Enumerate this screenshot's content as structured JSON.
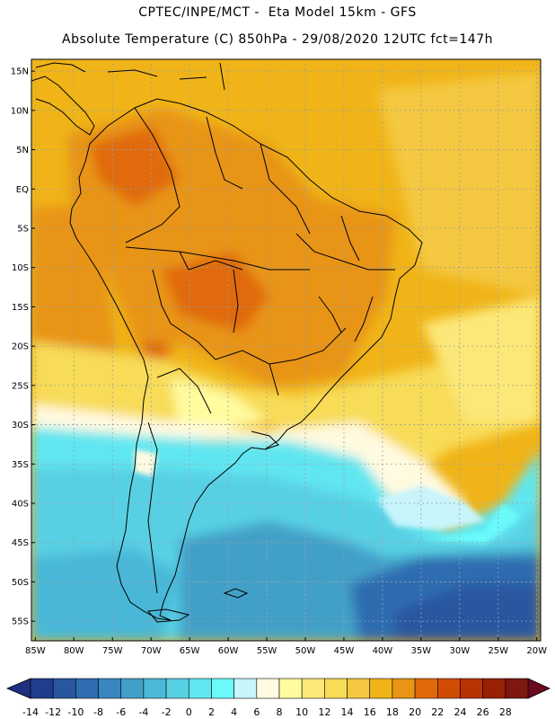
{
  "header": {
    "line1": "CPTEC/INPE/MCT -  Eta Model 15km - GFS",
    "line2": "Absolute Temperature (C) 850hPa - 29/08/2020 12UTC fct=147h"
  },
  "map": {
    "lat_labels": [
      "15N",
      "10N",
      "5N",
      "EQ",
      "5S",
      "10S",
      "15S",
      "20S",
      "25S",
      "30S",
      "35S",
      "40S",
      "45S",
      "50S",
      "55S"
    ],
    "lon_labels": [
      "85W",
      "80W",
      "75W",
      "70W",
      "65W",
      "60W",
      "55W",
      "50W",
      "45W",
      "40W",
      "35W",
      "30W",
      "25W",
      "20W"
    ],
    "lat_values": [
      15,
      10,
      5,
      0,
      -5,
      -10,
      -15,
      -20,
      -25,
      -30,
      -35,
      -40,
      -45,
      -50,
      -55
    ],
    "lon_values": [
      -85,
      -80,
      -75,
      -70,
      -65,
      -60,
      -55,
      -50,
      -45,
      -40,
      -35,
      -30,
      -25,
      -20
    ],
    "extent": {
      "lon_min": -85.5,
      "lon_max": -19.5,
      "lat_min": -57.5,
      "lat_max": 16.5
    }
  },
  "colorbar": {
    "labels": [
      "-14",
      "-12",
      "-10",
      "-8",
      "-6",
      "-4",
      "-2",
      "0",
      "2",
      "4",
      "6",
      "8",
      "10",
      "12",
      "14",
      "16",
      "18",
      "20",
      "22",
      "24",
      "26",
      "28"
    ],
    "colors": [
      "#203c8c",
      "#2a56a0",
      "#2f6cb0",
      "#3a86c0",
      "#42a0c8",
      "#4ab8d8",
      "#58d0e4",
      "#60e6f0",
      "#6afafa",
      "#c8f4fc",
      "#fffae0",
      "#fffca0",
      "#fce878",
      "#f8dc58",
      "#f4c840",
      "#f0b418",
      "#e89414",
      "#e06a0a",
      "#d04c06",
      "#b83204",
      "#982004",
      "#7c1810"
    ],
    "low_color": "#203080",
    "high_color": "#6c0820"
  }
}
